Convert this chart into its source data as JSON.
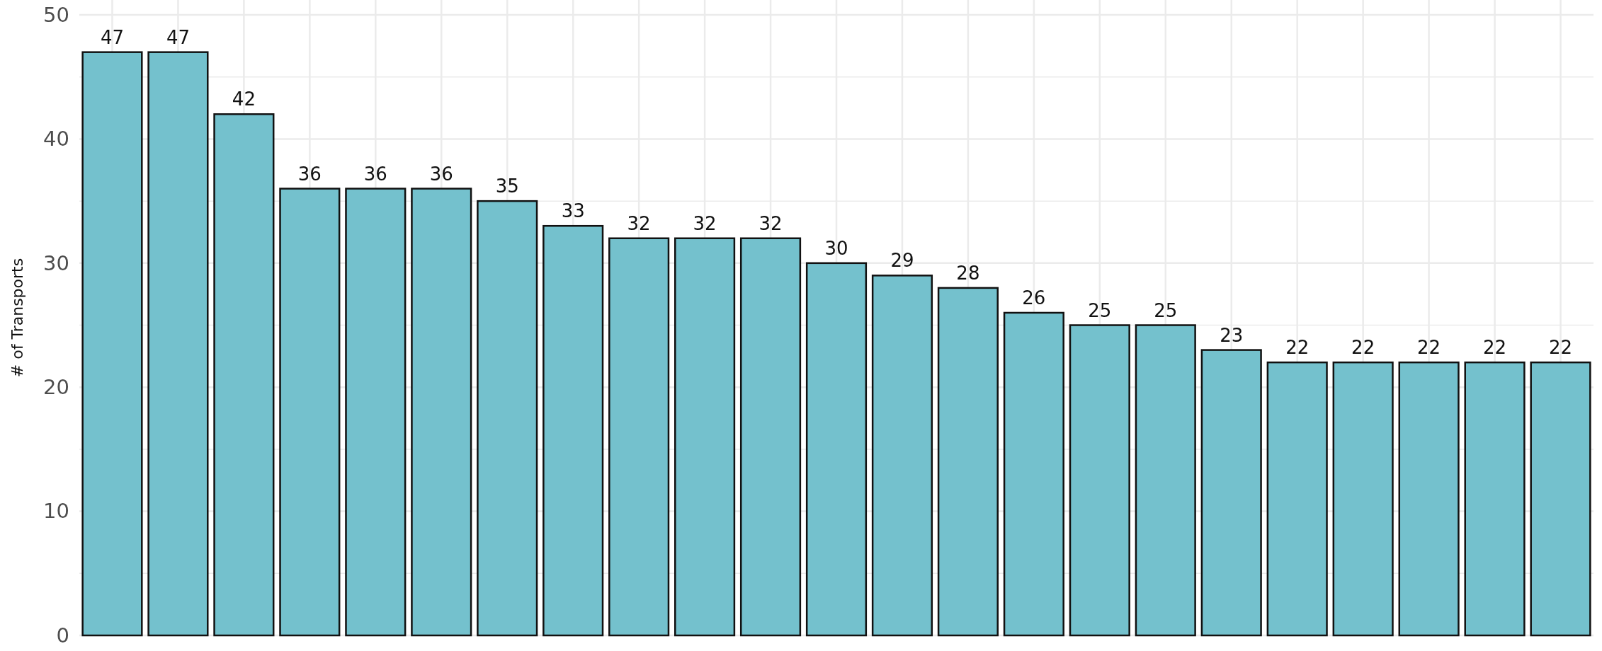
{
  "chart_data": {
    "type": "bar",
    "ylabel": "# of Transports",
    "categories": [
      null,
      null,
      null,
      null,
      null,
      null,
      null,
      null,
      null,
      null,
      null,
      null,
      null,
      null,
      null,
      null,
      null,
      null,
      null,
      null,
      null,
      null,
      null
    ],
    "values": [
      47,
      47,
      42,
      36,
      36,
      36,
      35,
      33,
      32,
      32,
      32,
      30,
      29,
      28,
      26,
      25,
      25,
      23,
      22,
      22,
      22,
      22,
      22
    ],
    "color": "#70bfcb",
    "data_labels": true,
    "grid": true,
    "tick_labels": "y",
    "ylim": [
      0,
      51.2
    ],
    "yticks": [
      0,
      {
        "value": 5,
        "label": null
      },
      10,
      {
        "value": 15,
        "label": null
      },
      20,
      {
        "value": 25,
        "label": null
      },
      30,
      {
        "value": 35,
        "label": null
      },
      40,
      {
        "value": 45,
        "label": null
      },
      50
    ]
  }
}
